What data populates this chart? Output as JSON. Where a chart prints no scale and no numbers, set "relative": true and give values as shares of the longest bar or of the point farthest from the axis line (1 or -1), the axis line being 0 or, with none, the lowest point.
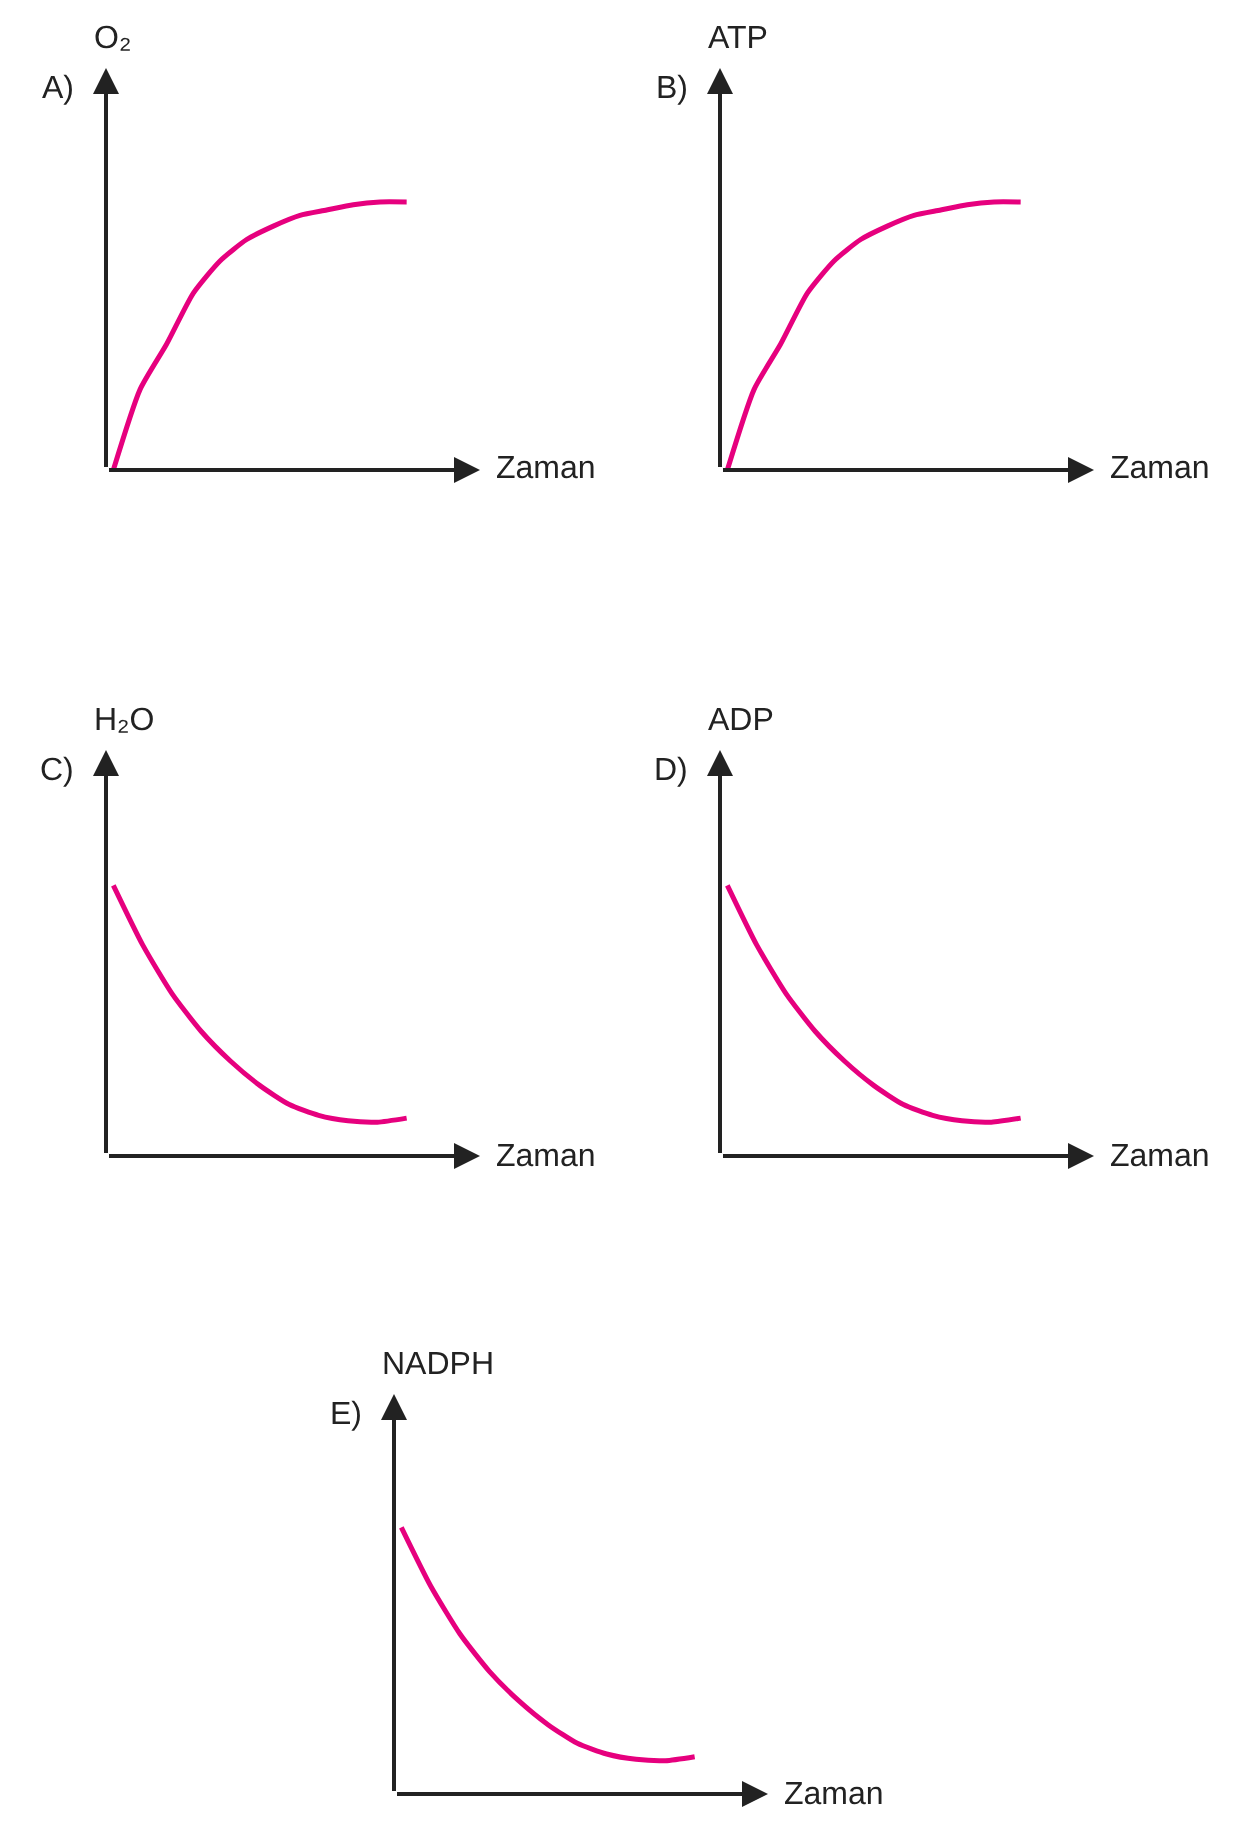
{
  "chart_data": [
    {
      "type": "line",
      "title": "A)",
      "ylabel": "O₂",
      "xlabel": "Zaman",
      "relative": true,
      "tick_labels": false,
      "color": "#e6007e",
      "categories": [
        null,
        null,
        null,
        null,
        null,
        null,
        null,
        null,
        null,
        null,
        null,
        null
      ],
      "values": [
        0,
        0.3,
        0.47,
        0.66,
        0.78,
        0.86,
        0.91,
        0.95,
        0.97,
        0.99,
        1.0,
        1.0
      ]
    },
    {
      "type": "line",
      "title": "B)",
      "ylabel": "ATP",
      "xlabel": "Zaman",
      "relative": true,
      "tick_labels": false,
      "color": "#e6007e",
      "categories": [
        null,
        null,
        null,
        null,
        null,
        null,
        null,
        null,
        null,
        null,
        null,
        null
      ],
      "values": [
        0,
        0.3,
        0.47,
        0.66,
        0.78,
        0.86,
        0.91,
        0.95,
        0.97,
        0.99,
        1.0,
        1.0
      ]
    },
    {
      "type": "line",
      "title": "C)",
      "ylabel": "H₂O",
      "xlabel": "Zaman",
      "relative": true,
      "tick_labels": false,
      "color": "#e6007e",
      "categories": [
        null,
        null,
        null,
        null,
        null,
        null,
        null,
        null,
        null,
        null,
        null
      ],
      "values": [
        1,
        0.78,
        0.6,
        0.46,
        0.35,
        0.26,
        0.19,
        0.15,
        0.13,
        0.125,
        0.14
      ]
    },
    {
      "type": "line",
      "title": "D)",
      "ylabel": "ADP",
      "xlabel": "Zaman",
      "relative": true,
      "tick_labels": false,
      "color": "#e6007e",
      "categories": [
        null,
        null,
        null,
        null,
        null,
        null,
        null,
        null,
        null,
        null,
        null
      ],
      "values": [
        1,
        0.78,
        0.6,
        0.46,
        0.35,
        0.26,
        0.19,
        0.15,
        0.13,
        0.125,
        0.14
      ]
    },
    {
      "type": "line",
      "title": "E)",
      "ylabel": "NADPH",
      "xlabel": "Zaman",
      "relative": true,
      "tick_labels": false,
      "color": "#e6007e",
      "categories": [
        null,
        null,
        null,
        null,
        null,
        null,
        null,
        null,
        null,
        null,
        null
      ],
      "values": [
        1,
        0.78,
        0.6,
        0.46,
        0.35,
        0.26,
        0.19,
        0.15,
        0.13,
        0.125,
        0.14
      ]
    }
  ]
}
